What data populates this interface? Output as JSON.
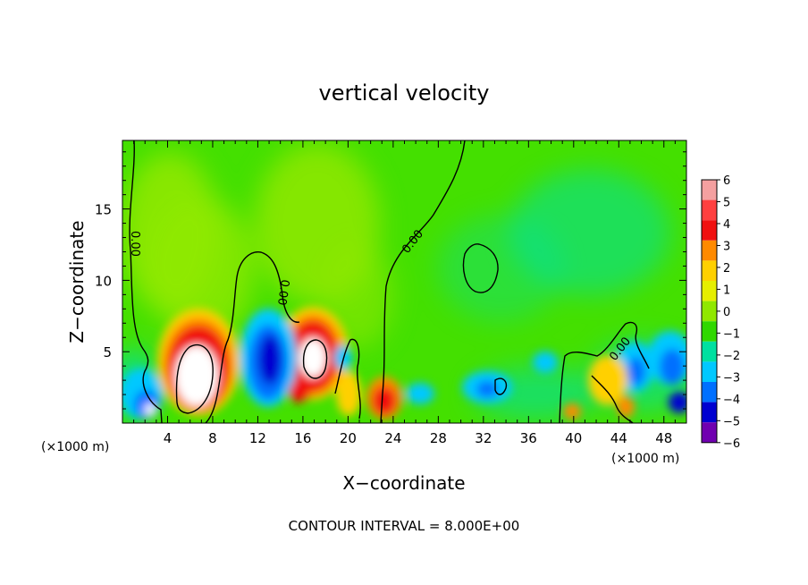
{
  "chart_data": {
    "type": "heatmap",
    "title": "vertical velocity",
    "xlabel": "X−coordinate",
    "ylabel": "Z−coordinate",
    "x_unit_left": "(×1000 m)",
    "x_unit_right": "(×1000 m)",
    "footer": "CONTOUR INTERVAL = 8.000E+00",
    "xlim": [
      0,
      50
    ],
    "ylim": [
      0,
      19.8
    ],
    "x_ticks": [
      4,
      8,
      12,
      16,
      20,
      24,
      28,
      32,
      36,
      40,
      44,
      48
    ],
    "y_ticks": [
      5,
      10,
      15
    ],
    "contour_labels": [
      "0.00",
      "0.00",
      "0.00",
      "0.00"
    ],
    "colorbar": {
      "ticks": [
        "6",
        "5",
        "4",
        "3",
        "2",
        "1",
        "0",
        "−1",
        "−2",
        "−3",
        "−4",
        "−5",
        "−6"
      ],
      "colors": [
        "#f4a0a0",
        "#ff4040",
        "#f01010",
        "#ff8a00",
        "#ffd000",
        "#e6ee00",
        "#90e800",
        "#30d800",
        "#00e0a0",
        "#00c8ff",
        "#0070ff",
        "#0000d0",
        "#7000b0"
      ]
    },
    "field_colors": {
      "background": "#44e000",
      "zero": "#30d800",
      "weak_positive": "#90e800",
      "weak_negative": "#00e0a0",
      "negative": "#00c8ff",
      "strong_negative": "#0070ff",
      "max_negative": "#0000d0",
      "positive": "#ffd000",
      "strong_positive": "#ff8a00",
      "very_strong_positive": "#f01010",
      "peak": "#ffffff"
    },
    "features": [
      {
        "kind": "updraft",
        "x": 7,
        "z": 3.5,
        "value": 6
      },
      {
        "kind": "updraft",
        "x": 17,
        "z": 4.5,
        "value": 6
      },
      {
        "kind": "updraft",
        "x": 23,
        "z": 1.5,
        "value": 4
      },
      {
        "kind": "downdraft",
        "x": 13.5,
        "z": 5,
        "value": -5
      },
      {
        "kind": "downdraft",
        "x": 1.5,
        "z": 1.5,
        "value": -4
      },
      {
        "kind": "downdraft",
        "x": 32,
        "z": 2.5,
        "value": -3
      },
      {
        "kind": "downdraft",
        "x": 45,
        "z": 3,
        "value": -4
      },
      {
        "kind": "downdraft",
        "x": 49,
        "z": 2,
        "value": -4
      }
    ]
  }
}
